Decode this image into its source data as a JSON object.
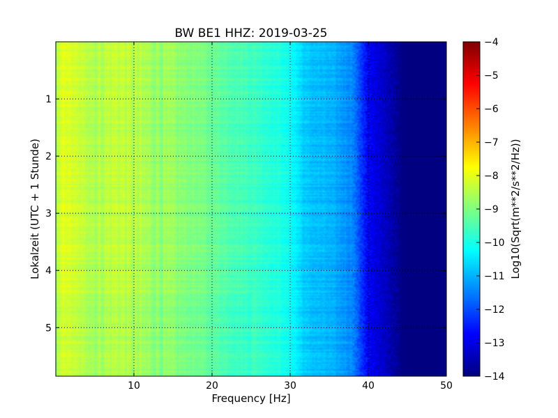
{
  "chart_data": {
    "type": "heatmap",
    "title": "BW BE1 HHZ: 2019-03-25",
    "xlabel": "Frequency [Hz]",
    "ylabel": "Lokalzeit (UTC + 1 Stunde)",
    "xlim": [
      0,
      50
    ],
    "ylim": [
      5.85,
      0
    ],
    "x_ticks": [
      10,
      20,
      30,
      40,
      50
    ],
    "y_ticks": [
      1,
      2,
      3,
      4,
      5
    ],
    "grid": true,
    "colormap": "jet",
    "colorbar": {
      "label": "Log10(Sqrt(m**2/s**2/Hz))",
      "range": [
        -14,
        -4
      ],
      "ticks": [
        -4,
        -5,
        -6,
        -7,
        -8,
        -9,
        -10,
        -11,
        -12,
        -13,
        -14
      ]
    },
    "spectrum_profile": {
      "frequency_hz": [
        0,
        1,
        3,
        5,
        8,
        10,
        14,
        18,
        22,
        26,
        29,
        30.5,
        32,
        35,
        38,
        39,
        40,
        42,
        43.5,
        44.5,
        50
      ],
      "log10_amplitude": [
        -8.6,
        -8.0,
        -8.3,
        -8.5,
        -8.3,
        -8.5,
        -8.8,
        -9.0,
        -9.4,
        -9.7,
        -10.0,
        -10.3,
        -10.8,
        -11.0,
        -11.4,
        -12.1,
        -12.8,
        -13.3,
        -13.7,
        -14.0,
        -14.0
      ]
    }
  }
}
